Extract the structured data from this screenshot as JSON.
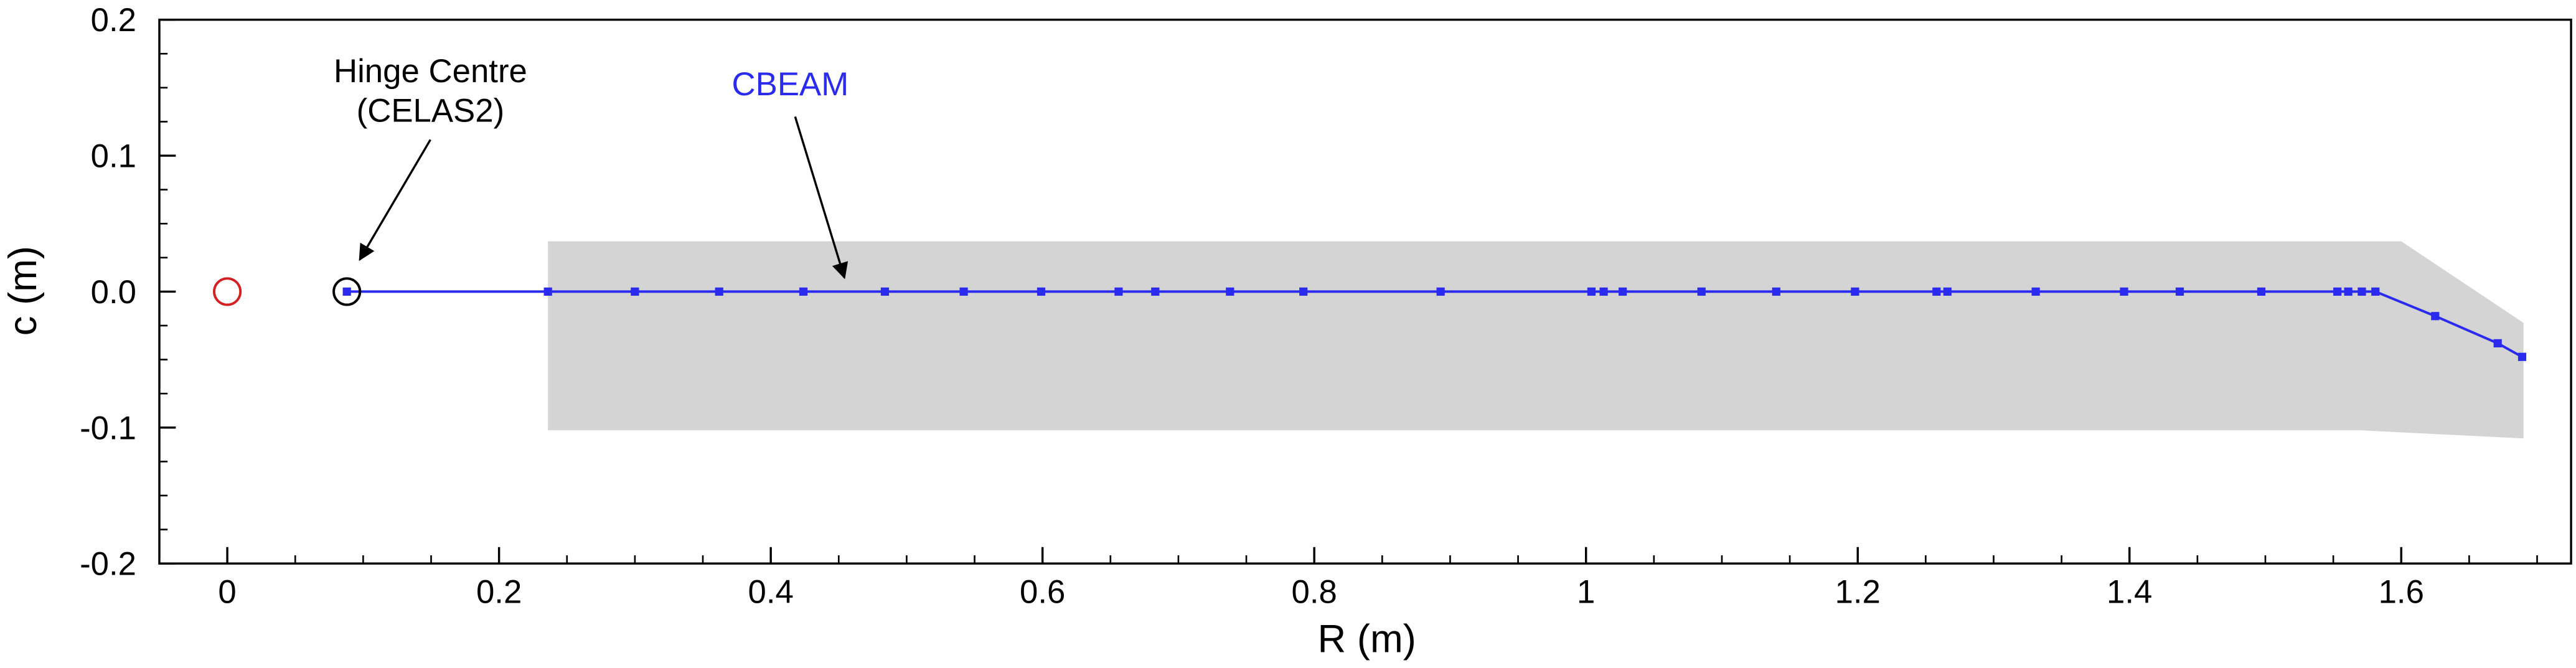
{
  "chart_data": {
    "type": "line",
    "xlabel": "R (m)",
    "ylabel": "c (m)",
    "xlim": [
      -0.05,
      1.725
    ],
    "ylim": [
      -0.2,
      0.2
    ],
    "xticks": [
      0,
      0.2,
      0.4,
      0.6,
      0.8,
      1,
      1.2,
      1.4,
      1.6
    ],
    "yticks": [
      -0.2,
      -0.1,
      {
        "value": 0,
        "label": "0.0"
      },
      0.1,
      0.2
    ],
    "xminor_ticks": [
      0.05,
      0.1,
      0.15,
      0.25,
      0.3,
      0.35,
      0.45,
      0.5,
      0.55,
      0.65,
      0.7,
      0.75,
      0.85,
      0.9,
      0.95,
      1.05,
      1.1,
      1.15,
      1.25,
      1.3,
      1.35,
      1.45,
      1.5,
      1.55,
      1.65,
      1.7
    ],
    "yminor_ticks": [
      -0.175,
      -0.15,
      -0.125,
      -0.075,
      -0.05,
      -0.025,
      0.025,
      0.05,
      0.075,
      0.125,
      0.15,
      0.175
    ],
    "planform": {
      "color": "#d4d4d4",
      "x": [
        0.236,
        1.6,
        1.69,
        1.69,
        1.57,
        0.236
      ],
      "y": [
        0.037,
        0.037,
        -0.023,
        -0.108,
        -0.102,
        -0.102
      ]
    },
    "series": [
      {
        "name": "CBEAM",
        "color": "#2b2bf0",
        "x": [
          0.088,
          0.236,
          0.3,
          0.362,
          0.424,
          0.484,
          0.542,
          0.599,
          0.656,
          0.683,
          0.738,
          0.792,
          0.893,
          1.004,
          1.013,
          1.027,
          1.085,
          1.14,
          1.198,
          1.258,
          1.266,
          1.331,
          1.396,
          1.437,
          1.497,
          1.553,
          1.561,
          1.571,
          1.581,
          1.625,
          1.671,
          1.689
        ],
        "y": [
          0,
          0,
          0,
          0,
          0,
          0,
          0,
          0,
          0,
          0,
          0,
          0,
          0,
          0,
          0,
          0,
          0,
          0,
          0,
          0,
          0,
          0,
          0,
          0,
          0,
          0,
          0,
          0,
          0,
          -0.018,
          -0.038,
          -0.048
        ]
      }
    ],
    "points": [
      {
        "x": 0,
        "y": 0,
        "color": "#d42020"
      },
      {
        "x": 0.088,
        "y": 0,
        "color": "#000000"
      }
    ],
    "annotations": [
      {
        "text": [
          "Hinge Centre",
          "(CELAS2)"
        ]
      }
    ]
  }
}
